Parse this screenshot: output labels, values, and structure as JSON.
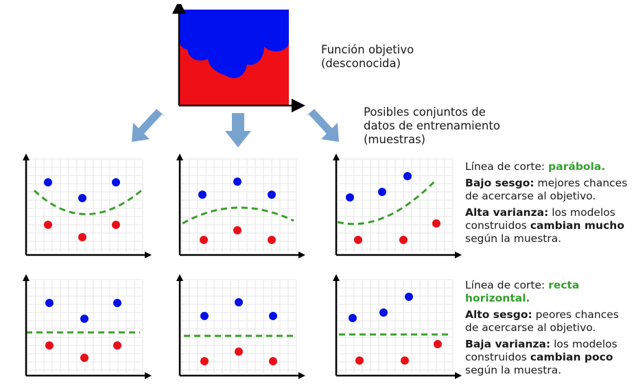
{
  "colors": {
    "class_a": "#0010e6",
    "class_b": "#e81018",
    "boundary": "#3a9e2a",
    "arrow": "#79a3cf",
    "grid": "#e6e6e6"
  },
  "target": {
    "label_line1": "Función objetivo",
    "label_line2": "(desconocida)"
  },
  "samples": {
    "label_line1": "Posibles conjuntos de",
    "label_line2": "datos de entrenamiento",
    "label_line3": "(muestras)"
  },
  "row_parabola": {
    "cut_prefix": "Línea de corte: ",
    "cut_model": "parábola",
    "cut_suffix": ".",
    "bias_bold": "Bajo sesgo:",
    "bias_text": " mejores chances de acercarse al objetivo.",
    "var_bold": "Alta varianza:",
    "var_text1": " los modelos construidos ",
    "var_bold2": "cambian mucho",
    "var_text2": " según la muestra."
  },
  "row_line": {
    "cut_prefix": "Línea de corte: ",
    "cut_model": "recta horizontal",
    "cut_suffix": ".",
    "bias_bold": "Alto sesgo:",
    "bias_text": " peores chances de acercarse al objetivo.",
    "var_bold": "Baja varianza:",
    "var_text1": " los modelos construidos ",
    "var_bold2": "cambian poco",
    "var_text2": " según la muestra."
  }
}
